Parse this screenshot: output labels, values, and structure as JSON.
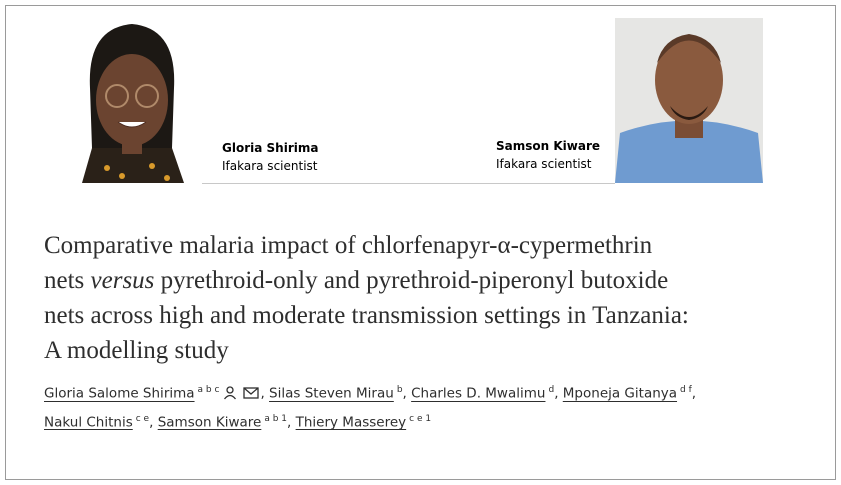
{
  "profiles": [
    {
      "name": "Gloria Shirima",
      "role": "Ifakara scientist"
    },
    {
      "name": "Samson Kiware",
      "role": "Ifakara scientist"
    }
  ],
  "title": [
    "Comparative malaria impact of chlorfenapyr-α-cypermethrin",
    "nets",
    "versus",
    "pyrethroid-only and pyrethroid-piperonyl butoxide",
    "nets across high and moderate transmission settings in Tanzania:",
    "A modelling study"
  ],
  "separator": ",",
  "authors": [
    {
      "name": "Gloria Salome Shirima",
      "affiliations": "a b c"
    },
    {
      "name": "Silas Steven Mirau",
      "affiliations": "b"
    },
    {
      "name": "Charles D. Mwalimu",
      "affiliations": "d"
    },
    {
      "name": "Mponeja Gitanya",
      "affiliations": "d f"
    },
    {
      "name": "Nakul Chitnis",
      "affiliations": "c e"
    },
    {
      "name": "Samson Kiware",
      "affiliations": "a b 1"
    },
    {
      "name": "Thiery Masserey",
      "affiliations": "c e 1"
    }
  ]
}
